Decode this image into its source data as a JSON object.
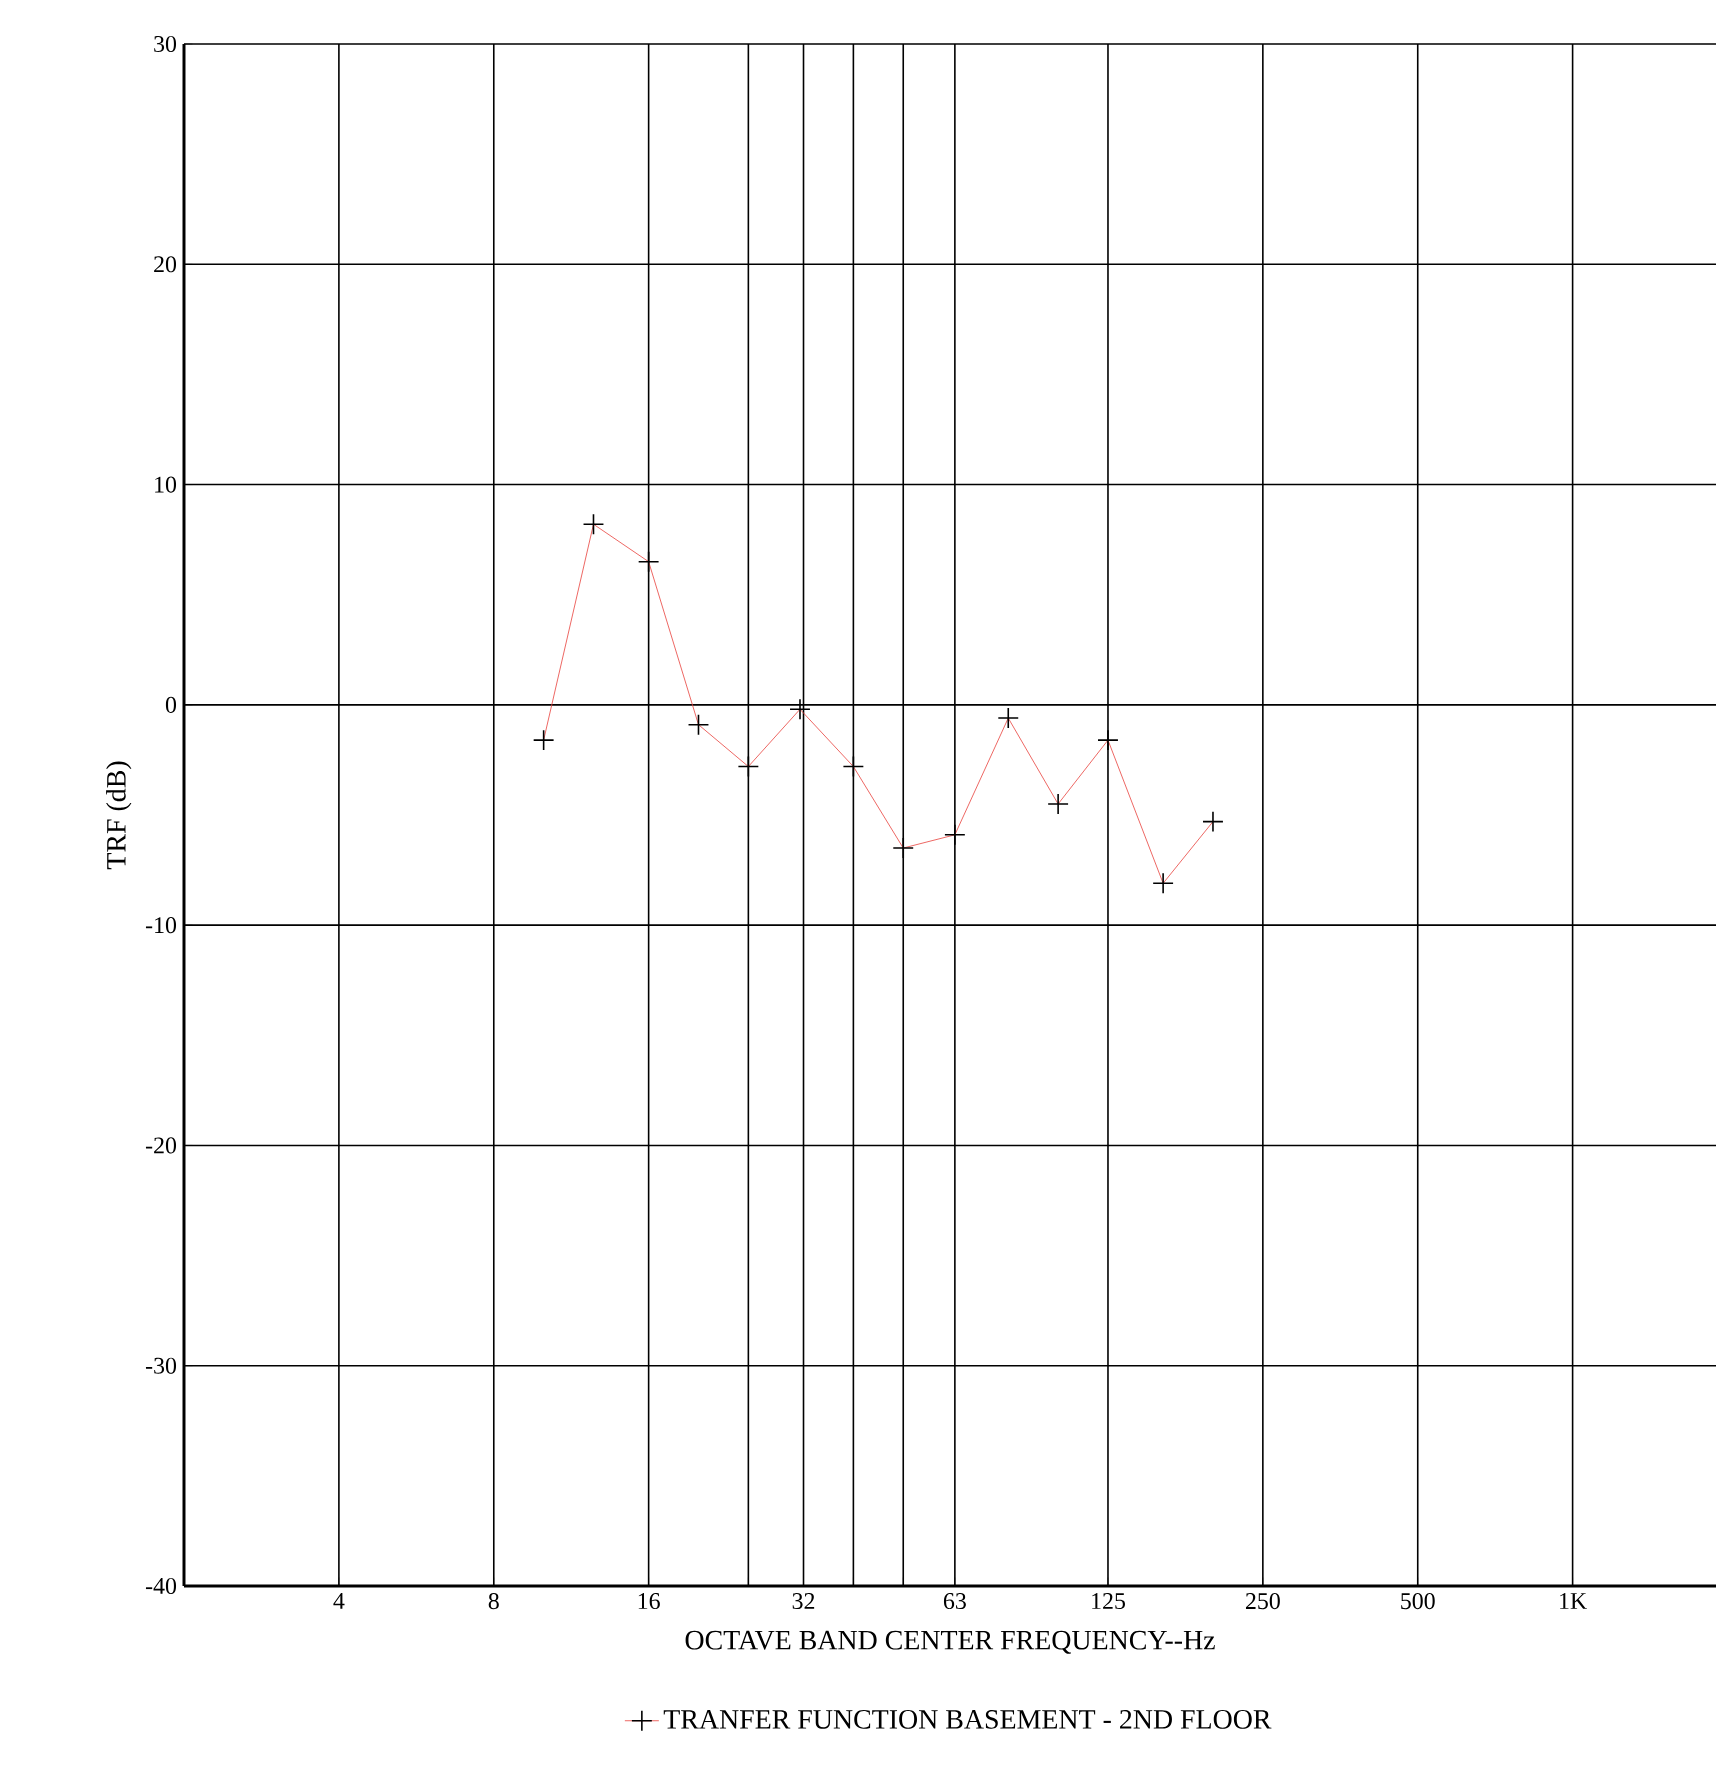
{
  "chart_data": {
    "type": "line",
    "xlabel": "OCTAVE BAND CENTER FREQUENCY--Hz",
    "ylabel": "TRF (dB)",
    "log": "x",
    "xlim": [
      2,
      1900
    ],
    "ylim": [
      -40,
      30
    ],
    "xticks": [
      4,
      8,
      16,
      {
        "value": 25,
        "label": null
      },
      32,
      {
        "value": 40,
        "label": null
      },
      {
        "value": 50,
        "label": null
      },
      63,
      125,
      250,
      500,
      {
        "value": 1000,
        "label": "1K"
      }
    ],
    "yticks": [
      -40,
      -30,
      -20,
      -10,
      0,
      10,
      20,
      30
    ],
    "grid": true,
    "legend": "bottom",
    "marker": "cross",
    "line_style": "solid",
    "series": [
      {
        "name": "TRANFER FUNCTION BASEMENT - 2ND FLOOR",
        "color": "#e8413c",
        "x": [
          10,
          12.5,
          16,
          20,
          25,
          31.5,
          40,
          50,
          63,
          80,
          100,
          125,
          160,
          200
        ],
        "values": [
          -1.6,
          8.2,
          6.5,
          -0.9,
          -2.8,
          -0.2,
          -2.8,
          -6.5,
          -5.9,
          -0.6,
          -4.5,
          -1.6,
          -8.1,
          -5.3
        ]
      }
    ]
  }
}
